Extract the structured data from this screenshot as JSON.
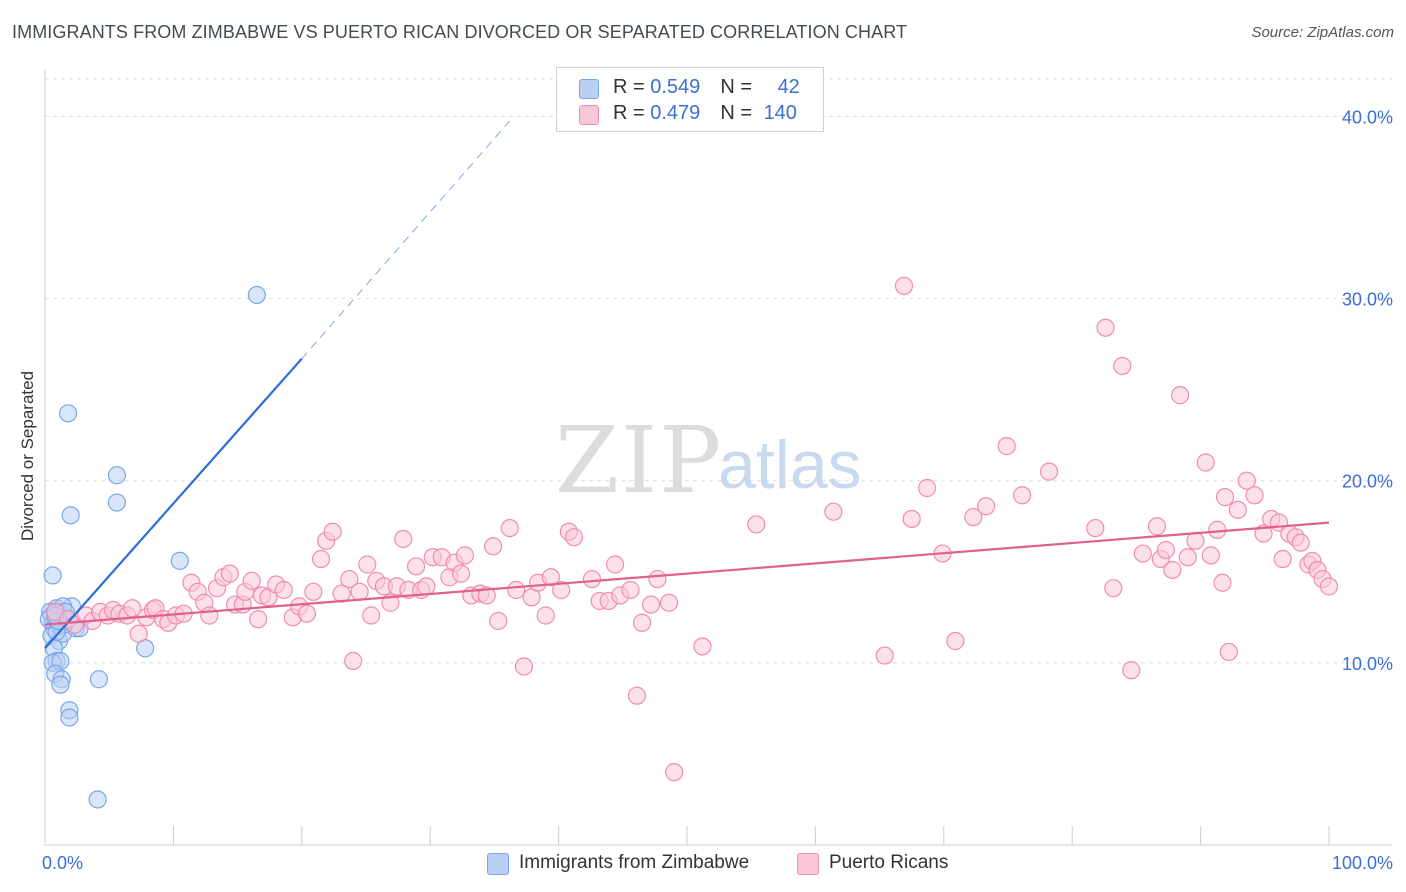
{
  "title": "IMMIGRANTS FROM ZIMBABWE VS PUERTO RICAN DIVORCED OR SEPARATED CORRELATION CHART",
  "source": "Source: ZipAtlas.com",
  "watermark": {
    "zip": "ZIP",
    "atlas": "atlas"
  },
  "legend": {
    "series1": {
      "r_label": "R = ",
      "r_value": "0.549",
      "n_label": "N = ",
      "n_value": "42"
    },
    "series2": {
      "r_label": "R = ",
      "r_value": "0.479",
      "n_label": "N = ",
      "n_value": "140"
    }
  },
  "chart_data": {
    "type": "scatter",
    "title": "IMMIGRANTS FROM ZIMBABWE VS PUERTO RICAN DIVORCED OR SEPARATED CORRELATION CHART",
    "xlabel": "",
    "ylabel": "Divorced or Separated",
    "xlim": [
      0,
      100
    ],
    "ylim": [
      0,
      42
    ],
    "x_tick_labels": {
      "left": "0.0%",
      "right": "100.0%"
    },
    "y_ticks": [
      {
        "value": 10,
        "label": "10.0%"
      },
      {
        "value": 20,
        "label": "20.0%"
      },
      {
        "value": 30,
        "label": "30.0%"
      },
      {
        "value": 40,
        "label": "40.0%"
      }
    ],
    "grid": true,
    "legend_position": "top-center",
    "series": [
      {
        "name": "Immigrants from Zimbabwe",
        "color": "#7aa6e8",
        "fill": "#b9d0f3",
        "line_color": "#2b6fd4",
        "trend": {
          "x0": 0,
          "y0": 10.8,
          "x1": 20,
          "y1": 26.7,
          "dashed_to_x": 36.5,
          "dashed_to_y": 40.0
        },
        "points": [
          [
            0.5,
            12.6
          ],
          [
            0.6,
            12.2
          ],
          [
            0.7,
            11.9
          ],
          [
            0.5,
            11.5
          ],
          [
            0.9,
            13.0
          ],
          [
            0.8,
            12.4
          ],
          [
            1.0,
            12.8
          ],
          [
            1.2,
            12.0
          ],
          [
            0.6,
            14.8
          ],
          [
            1.1,
            11.2
          ],
          [
            1.4,
            11.6
          ],
          [
            1.6,
            12.5
          ],
          [
            0.7,
            10.8
          ],
          [
            0.9,
            10.1
          ],
          [
            0.6,
            10.0
          ],
          [
            1.2,
            10.1
          ],
          [
            0.8,
            9.4
          ],
          [
            1.3,
            9.1
          ],
          [
            1.2,
            8.8
          ],
          [
            1.9,
            7.4
          ],
          [
            1.9,
            7.0
          ],
          [
            4.2,
            9.1
          ],
          [
            2.0,
            18.1
          ],
          [
            1.8,
            23.7
          ],
          [
            5.6,
            18.8
          ],
          [
            5.6,
            20.3
          ],
          [
            7.8,
            10.8
          ],
          [
            10.5,
            15.6
          ],
          [
            16.5,
            30.2
          ],
          [
            4.1,
            2.5
          ],
          [
            2.1,
            13.1
          ],
          [
            2.4,
            11.9
          ],
          [
            1.5,
            12.1
          ],
          [
            1.7,
            12.3
          ],
          [
            1.4,
            13.1
          ],
          [
            0.4,
            12.8
          ],
          [
            2.7,
            11.9
          ],
          [
            1.6,
            12.8
          ],
          [
            0.9,
            11.7
          ],
          [
            0.3,
            12.4
          ],
          [
            1.0,
            12.3
          ],
          [
            0.8,
            12.6
          ]
        ]
      },
      {
        "name": "Puerto Ricans",
        "color": "#f08cb0",
        "fill": "#f9c8d8",
        "line_color": "#e0608f",
        "trend": {
          "x0": 0,
          "y0": 12.1,
          "x1": 100,
          "y1": 17.7
        },
        "points": [
          [
            0.8,
            12.8
          ],
          [
            1.8,
            12.4
          ],
          [
            2.3,
            12.1
          ],
          [
            3.2,
            12.6
          ],
          [
            3.7,
            12.3
          ],
          [
            4.3,
            12.8
          ],
          [
            4.9,
            12.6
          ],
          [
            5.3,
            12.9
          ],
          [
            5.8,
            12.7
          ],
          [
            6.4,
            12.6
          ],
          [
            6.8,
            13.0
          ],
          [
            7.3,
            11.6
          ],
          [
            7.9,
            12.5
          ],
          [
            8.4,
            12.9
          ],
          [
            8.6,
            13.0
          ],
          [
            9.2,
            12.4
          ],
          [
            9.6,
            12.2
          ],
          [
            10.2,
            12.6
          ],
          [
            10.8,
            12.7
          ],
          [
            11.4,
            14.4
          ],
          [
            11.9,
            13.9
          ],
          [
            12.4,
            13.3
          ],
          [
            12.8,
            12.6
          ],
          [
            13.4,
            14.1
          ],
          [
            13.9,
            14.7
          ],
          [
            14.4,
            14.9
          ],
          [
            14.8,
            13.2
          ],
          [
            15.4,
            13.2
          ],
          [
            15.6,
            13.9
          ],
          [
            16.1,
            14.5
          ],
          [
            16.6,
            12.4
          ],
          [
            16.9,
            13.7
          ],
          [
            17.4,
            13.6
          ],
          [
            18.0,
            14.3
          ],
          [
            18.6,
            14.0
          ],
          [
            19.3,
            12.5
          ],
          [
            19.8,
            13.1
          ],
          [
            20.4,
            12.7
          ],
          [
            20.9,
            13.9
          ],
          [
            21.5,
            15.7
          ],
          [
            21.9,
            16.7
          ],
          [
            22.4,
            17.2
          ],
          [
            23.1,
            13.8
          ],
          [
            23.7,
            14.6
          ],
          [
            24.0,
            10.1
          ],
          [
            24.5,
            13.9
          ],
          [
            25.1,
            15.4
          ],
          [
            25.4,
            12.6
          ],
          [
            25.8,
            14.5
          ],
          [
            26.4,
            14.2
          ],
          [
            26.9,
            13.3
          ],
          [
            27.4,
            14.2
          ],
          [
            27.9,
            16.8
          ],
          [
            28.3,
            14.0
          ],
          [
            28.9,
            15.3
          ],
          [
            29.3,
            14.0
          ],
          [
            29.7,
            14.2
          ],
          [
            30.2,
            15.8
          ],
          [
            30.9,
            15.8
          ],
          [
            31.5,
            14.7
          ],
          [
            31.9,
            15.5
          ],
          [
            32.4,
            14.9
          ],
          [
            32.7,
            15.9
          ],
          [
            33.2,
            13.7
          ],
          [
            33.9,
            13.8
          ],
          [
            34.4,
            13.7
          ],
          [
            34.9,
            16.4
          ],
          [
            35.3,
            12.3
          ],
          [
            36.2,
            17.4
          ],
          [
            36.7,
            14.0
          ],
          [
            37.3,
            9.8
          ],
          [
            37.9,
            13.6
          ],
          [
            38.4,
            14.4
          ],
          [
            39.0,
            12.6
          ],
          [
            39.4,
            14.7
          ],
          [
            40.2,
            14.0
          ],
          [
            40.8,
            17.2
          ],
          [
            41.2,
            16.9
          ],
          [
            42.6,
            14.6
          ],
          [
            43.2,
            13.4
          ],
          [
            43.9,
            13.4
          ],
          [
            44.4,
            15.4
          ],
          [
            44.8,
            13.7
          ],
          [
            45.6,
            14.0
          ],
          [
            46.1,
            8.2
          ],
          [
            46.5,
            12.2
          ],
          [
            47.2,
            13.2
          ],
          [
            47.7,
            14.6
          ],
          [
            48.6,
            13.3
          ],
          [
            49.0,
            4.0
          ],
          [
            51.2,
            10.9
          ],
          [
            55.4,
            17.6
          ],
          [
            61.4,
            18.3
          ],
          [
            65.4,
            10.4
          ],
          [
            66.9,
            30.7
          ],
          [
            67.5,
            17.9
          ],
          [
            68.7,
            19.6
          ],
          [
            69.9,
            16.0
          ],
          [
            70.9,
            11.2
          ],
          [
            72.3,
            18.0
          ],
          [
            73.3,
            18.6
          ],
          [
            74.9,
            21.9
          ],
          [
            76.1,
            19.2
          ],
          [
            78.2,
            20.5
          ],
          [
            81.8,
            17.4
          ],
          [
            82.6,
            28.4
          ],
          [
            83.2,
            14.1
          ],
          [
            83.9,
            26.3
          ],
          [
            84.6,
            9.6
          ],
          [
            85.5,
            16.0
          ],
          [
            86.6,
            17.5
          ],
          [
            86.9,
            15.7
          ],
          [
            87.3,
            16.2
          ],
          [
            87.8,
            15.1
          ],
          [
            88.4,
            24.7
          ],
          [
            89.0,
            15.8
          ],
          [
            89.6,
            16.7
          ],
          [
            90.4,
            21.0
          ],
          [
            90.8,
            15.9
          ],
          [
            91.3,
            17.3
          ],
          [
            91.7,
            14.4
          ],
          [
            91.9,
            19.1
          ],
          [
            92.2,
            10.6
          ],
          [
            92.9,
            18.4
          ],
          [
            93.6,
            20.0
          ],
          [
            94.2,
            19.2
          ],
          [
            94.9,
            17.1
          ],
          [
            95.5,
            17.9
          ],
          [
            96.1,
            17.7
          ],
          [
            96.4,
            15.7
          ],
          [
            96.9,
            17.1
          ],
          [
            97.4,
            16.9
          ],
          [
            97.8,
            16.6
          ],
          [
            98.4,
            15.4
          ],
          [
            98.7,
            15.6
          ],
          [
            99.1,
            15.1
          ],
          [
            99.5,
            14.6
          ],
          [
            100.0,
            14.2
          ]
        ]
      }
    ]
  },
  "bottom_legend": [
    {
      "label": "Immigrants from Zimbabwe"
    },
    {
      "label": "Puerto Ricans"
    }
  ]
}
